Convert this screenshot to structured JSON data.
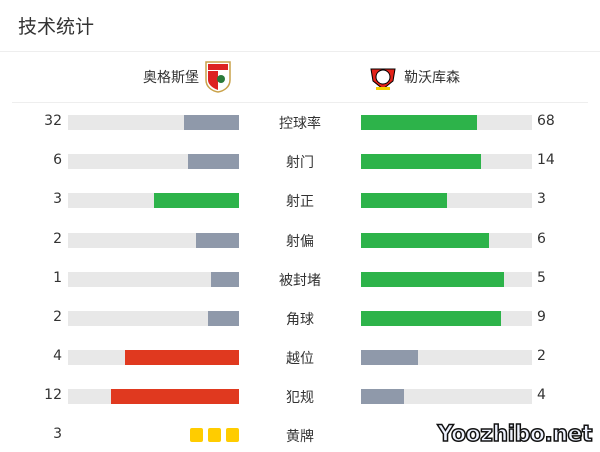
{
  "title": "技术统计",
  "home": {
    "name": "奥格斯堡",
    "logo_text": "FCA"
  },
  "away": {
    "name": "勒沃库森"
  },
  "colors": {
    "win": "#2db34a",
    "lose": "#8f99aa",
    "bad": "#e0391f",
    "track": "#e8e8e8",
    "card": "#ffcc00"
  },
  "stats": [
    {
      "label": "控球率",
      "home": 32,
      "away": 68,
      "home_color": "lose",
      "away_color": "win"
    },
    {
      "label": "射门",
      "home": 6,
      "away": 14,
      "home_color": "lose",
      "away_color": "win"
    },
    {
      "label": "射正",
      "home": 3,
      "away": 3,
      "home_color": "win",
      "away_color": "win"
    },
    {
      "label": "射偏",
      "home": 2,
      "away": 6,
      "home_color": "lose",
      "away_color": "win"
    },
    {
      "label": "被封堵",
      "home": 1,
      "away": 5,
      "home_color": "lose",
      "away_color": "win"
    },
    {
      "label": "角球",
      "home": 2,
      "away": 9,
      "home_color": "lose",
      "away_color": "win"
    },
    {
      "label": "越位",
      "home": 4,
      "away": 2,
      "home_color": "bad",
      "away_color": "lose"
    },
    {
      "label": "犯规",
      "home": 12,
      "away": 4,
      "home_color": "bad",
      "away_color": "lose"
    }
  ],
  "yellow": {
    "label": "黄牌",
    "home": 3
  },
  "watermark": "Yoozhibo.net"
}
